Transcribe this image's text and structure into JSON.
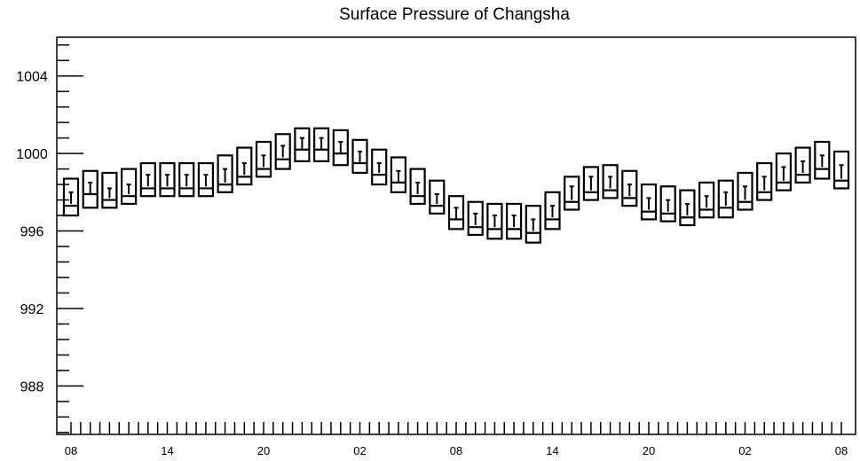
{
  "chart_data": {
    "type": "boxplot",
    "title": "Surface Pressure of Changsha",
    "xlabel": "",
    "ylabel": "",
    "ylim": [
      985.5,
      1006
    ],
    "y_major_ticks": [
      988,
      992,
      996,
      1000,
      1004
    ],
    "y_minor_step": 0.8,
    "n_x_ticks": 81,
    "x_tick_labels": [
      {
        "index": 0,
        "label": "08"
      },
      {
        "index": 10,
        "label": "14"
      },
      {
        "index": 20,
        "label": "20"
      },
      {
        "index": 30,
        "label": "02"
      },
      {
        "index": 40,
        "label": "08"
      },
      {
        "index": 50,
        "label": "14"
      },
      {
        "index": 60,
        "label": "20"
      },
      {
        "index": 70,
        "label": "02"
      },
      {
        "index": 80,
        "label": "08"
      }
    ],
    "series": [
      {
        "x_index": [
          0,
          2,
          4,
          6,
          8,
          10,
          12,
          14,
          16,
          18,
          20,
          22,
          24,
          26,
          28,
          30,
          32,
          34,
          36,
          38,
          40,
          42,
          44,
          46,
          48,
          50,
          52,
          54,
          56,
          58,
          60,
          62,
          64,
          66,
          68,
          70,
          72,
          74,
          76,
          78,
          80
        ],
        "low": [
          996.8,
          997.2,
          997.2,
          997.4,
          997.8,
          997.8,
          997.8,
          997.8,
          998.0,
          998.4,
          998.8,
          999.2,
          999.6,
          999.6,
          999.4,
          999.0,
          998.4,
          998.0,
          997.4,
          996.9,
          996.1,
          995.8,
          995.6,
          995.6,
          995.4,
          996.1,
          997.1,
          997.6,
          997.7,
          997.3,
          996.6,
          996.5,
          996.3,
          996.7,
          996.7,
          997.1,
          997.6,
          998.1,
          998.5,
          998.7,
          998.2
        ],
        "q1": [
          997.4,
          997.9,
          997.7,
          997.9,
          998.3,
          998.3,
          998.3,
          998.3,
          998.5,
          998.9,
          999.3,
          999.8,
          1000.2,
          1000.2,
          1000.0,
          999.5,
          999.0,
          998.5,
          997.9,
          997.4,
          996.6,
          996.3,
          996.2,
          996.2,
          996.0,
          996.7,
          997.6,
          998.1,
          998.2,
          997.8,
          997.1,
          997.0,
          996.8,
          997.2,
          997.3,
          997.6,
          998.1,
          998.6,
          999.0,
          999.3,
          998.7
        ],
        "median": [
          997.3,
          997.9,
          997.6,
          997.8,
          998.2,
          998.2,
          998.2,
          998.2,
          998.4,
          998.8,
          999.2,
          999.7,
          1000.2,
          1000.2,
          1000.0,
          999.5,
          998.9,
          998.5,
          997.8,
          997.3,
          996.6,
          996.2,
          996.1,
          996.1,
          995.9,
          996.6,
          997.5,
          998.0,
          998.1,
          997.7,
          997.0,
          996.9,
          996.7,
          997.1,
          997.2,
          997.5,
          998.0,
          998.5,
          998.9,
          999.2,
          998.6
        ],
        "q3": [
          998.0,
          998.5,
          998.2,
          998.4,
          998.9,
          998.9,
          998.9,
          998.9,
          999.2,
          999.5,
          999.9,
          1000.4,
          1000.8,
          1000.8,
          1000.6,
          1000.1,
          999.5,
          999.1,
          998.5,
          997.9,
          997.2,
          996.9,
          996.8,
          996.8,
          996.6,
          997.3,
          998.3,
          998.8,
          998.8,
          998.4,
          997.7,
          997.6,
          997.4,
          997.8,
          998.0,
          998.3,
          998.8,
          999.3,
          999.6,
          999.9,
          999.4
        ],
        "high": [
          998.7,
          999.1,
          999.0,
          999.2,
          999.5,
          999.5,
          999.5,
          999.5,
          999.9,
          1000.3,
          1000.6,
          1001.0,
          1001.3,
          1001.3,
          1001.2,
          1000.7,
          1000.2,
          999.8,
          999.2,
          998.6,
          997.8,
          997.5,
          997.4,
          997.4,
          997.3,
          998.0,
          998.8,
          999.3,
          999.4,
          999.1,
          998.4,
          998.3,
          998.1,
          998.5,
          998.6,
          999.0,
          999.5,
          1000.0,
          1000.3,
          1000.6,
          1000.1
        ]
      }
    ]
  }
}
